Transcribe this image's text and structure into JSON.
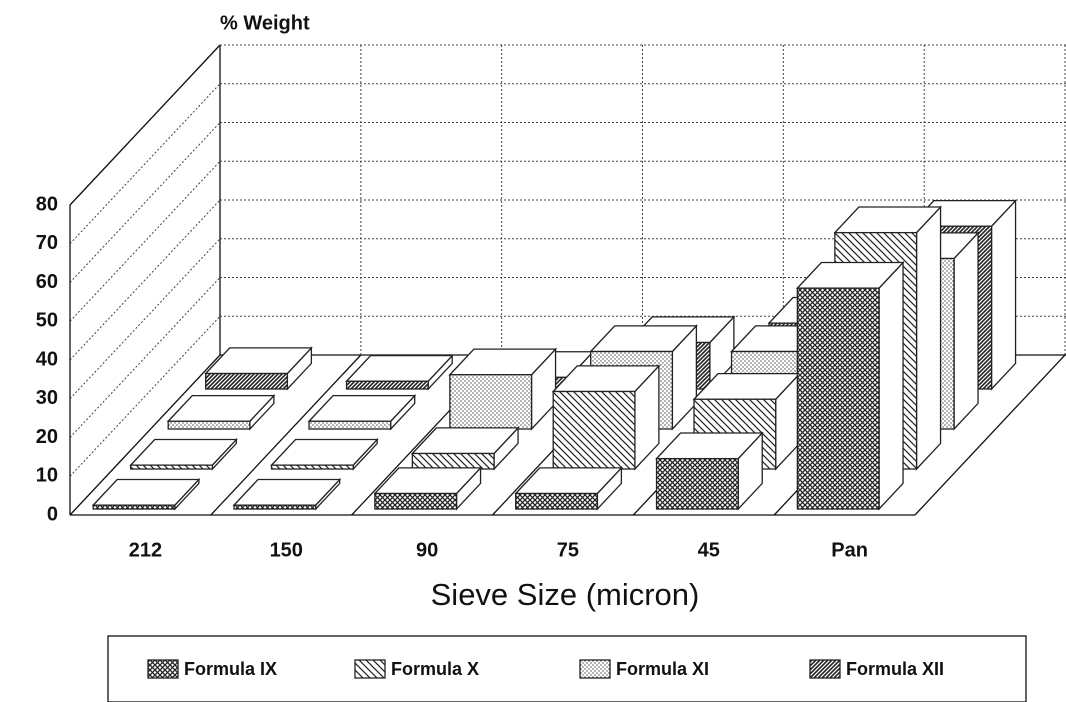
{
  "chart_data": {
    "type": "bar3d",
    "y_label": "% Weight",
    "x_label": "Sieve Size (micron)",
    "categories": [
      "212",
      "150",
      "90",
      "75",
      "45",
      "Pan"
    ],
    "series": [
      {
        "name": "Formula IX",
        "color": "#222222",
        "pattern": "crosshatch",
        "values": [
          1,
          1,
          4,
          4,
          13,
          57
        ]
      },
      {
        "name": "Formula X",
        "color": "#222222",
        "pattern": "diagonal",
        "values": [
          1,
          1,
          4,
          20,
          18,
          61
        ]
      },
      {
        "name": "Formula XI",
        "color": "#222222",
        "pattern": "dots",
        "values": [
          2,
          2,
          14,
          20,
          20,
          44
        ]
      },
      {
        "name": "Formula XII",
        "color": "#222222",
        "pattern": "dense-diagonal",
        "values": [
          4,
          2,
          3,
          12,
          17,
          42
        ]
      }
    ],
    "ylim": [
      0,
      80
    ],
    "yticks": [
      0,
      10,
      20,
      30,
      40,
      50,
      60,
      70,
      80
    ],
    "grid": true
  }
}
